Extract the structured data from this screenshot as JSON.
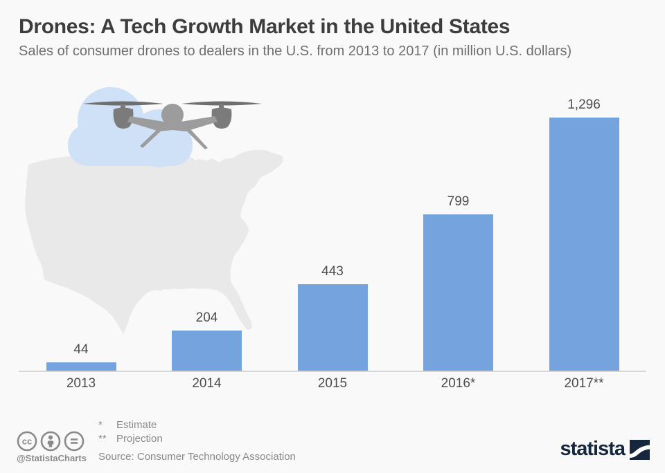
{
  "header": {
    "title": "Drones: A Tech Growth Market in the United States",
    "subtitle": "Sales of consumer drones to dealers in the U.S. from 2013 to 2017 (in million U.S. dollars)"
  },
  "chart_data": {
    "type": "bar",
    "categories": [
      "2013",
      "2014",
      "2015",
      "2016*",
      "2017**"
    ],
    "values": [
      44,
      204,
      443,
      799,
      1296
    ],
    "value_labels": [
      "44",
      "204",
      "443",
      "799",
      "1,296"
    ],
    "title": "Drones: A Tech Growth Market in the United States",
    "subtitle": "Sales of consumer drones to dealers in the U.S. from 2013 to 2017 (in million U.S. dollars)",
    "xlabel": "",
    "ylabel": "",
    "ylim": [
      0,
      1400
    ],
    "grid": false,
    "legend": false,
    "bar_color": "#74a3dd"
  },
  "annotations": {
    "footnotes": [
      {
        "marker": "*",
        "label": "Estimate"
      },
      {
        "marker": "**",
        "label": "Projection"
      }
    ],
    "source": "Source: Consumer Technology Association"
  },
  "footer": {
    "credit_handle": "@StatistaCharts",
    "cc_icons": [
      "cc-license-icon",
      "attribution-person-icon",
      "no-derivatives-equals-icon"
    ],
    "brand": "statista"
  },
  "decoration": {
    "graphics": [
      "us-map-silhouette",
      "cloud-shape",
      "drone-illustration"
    ]
  },
  "colors": {
    "background": "#f9f9f9",
    "bar": "#74a3dd",
    "title": "#3d3d3d",
    "subtitle": "#6f6f6f",
    "labels": "#4c4c4c",
    "footnote": "#8a8a8a",
    "baseline": "#d6d6d6",
    "map": "#e9e9e9",
    "cloud": "#cfe1f6",
    "drone_body": "#9c9c9c",
    "drone_pods": "#7b7b7b",
    "drone_props": "#6e6e6e",
    "brand_navy": "#16263c"
  }
}
